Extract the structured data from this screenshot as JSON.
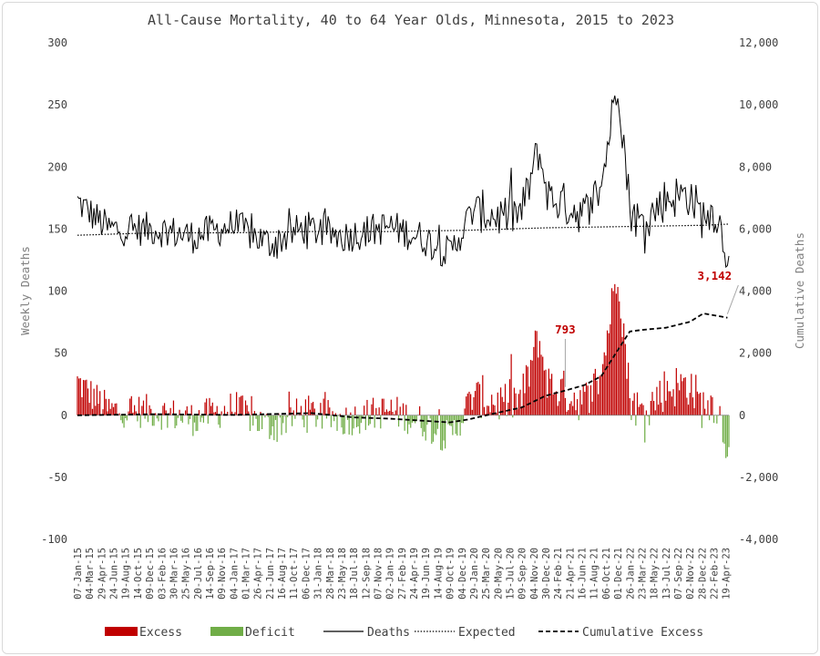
{
  "chart_data": {
    "type": "bar",
    "title": "All-Cause Mortality, 40 to 64 Year Olds, Minnesota, 2015 to 2023",
    "ylabel_left": "Weekly Deaths",
    "ylabel_right": "Cumulative Deaths",
    "ylim_left": [
      -100,
      300
    ],
    "yticks_left": [
      "-100",
      "-50",
      "0",
      "50",
      "100",
      "150",
      "200",
      "250",
      "300"
    ],
    "ylim_right": [
      -4000,
      12000
    ],
    "yticks_right": [
      "-4,000",
      "-2,000",
      "0",
      "2,000",
      "4,000",
      "6,000",
      "8,000",
      "10,000",
      "12,000"
    ],
    "x_start": "2015-01-07",
    "x_end": "2023-05-03",
    "week_count": 435,
    "xtick_labels": [
      "07-Jan-15",
      "04-Mar-15",
      "29-Apr-15",
      "24-Jun-15",
      "19-Aug-15",
      "14-Oct-15",
      "09-Dec-15",
      "03-Feb-16",
      "30-Mar-16",
      "25-May-16",
      "20-Jul-16",
      "14-Sep-16",
      "09-Nov-16",
      "04-Jan-17",
      "01-Mar-17",
      "26-Apr-17",
      "21-Jun-17",
      "16-Aug-17",
      "11-Oct-17",
      "06-Dec-17",
      "31-Jan-18",
      "28-Mar-18",
      "23-May-18",
      "18-Jul-18",
      "12-Sep-18",
      "07-Nov-18",
      "02-Jan-19",
      "27-Feb-19",
      "24-Apr-19",
      "19-Jun-19",
      "14-Aug-19",
      "09-Oct-19",
      "04-Dec-19",
      "29-Jan-20",
      "25-Mar-20",
      "20-May-20",
      "15-Jul-20",
      "09-Sep-20",
      "04-Nov-20",
      "30-Dec-20",
      "24-Feb-21",
      "21-Apr-21",
      "16-Jun-21",
      "11-Aug-21",
      "06-Oct-21",
      "01-Dec-21",
      "26-Jan-22",
      "23-Mar-22",
      "18-May-22",
      "13-Jul-22",
      "07-Sep-22",
      "02-Nov-22",
      "28-Dec-22",
      "22-Feb-23",
      "19-Apr-23"
    ],
    "series": [
      {
        "name": "Excess",
        "kind": "bar",
        "color": "#c00000"
      },
      {
        "name": "Deficit",
        "kind": "bar",
        "color": "#70ad47"
      },
      {
        "name": "Deaths",
        "kind": "line",
        "axis": "left",
        "color": "#000000"
      },
      {
        "name": "Expected",
        "kind": "line",
        "axis": "left",
        "style": "dotted",
        "color": "#000000"
      },
      {
        "name": "Cumulative Excess",
        "kind": "line",
        "axis": "right",
        "style": "dashed",
        "color": "#000000"
      }
    ],
    "expected_weekly": [
      [
        "2015-01-07",
        145
      ],
      [
        "2016-01-06",
        147
      ],
      [
        "2017-01-04",
        147
      ],
      [
        "2018-01-03",
        148
      ],
      [
        "2019-01-02",
        148
      ],
      [
        "2020-01-01",
        149
      ],
      [
        "2021-01-06",
        151
      ],
      [
        "2022-01-05",
        152
      ],
      [
        "2023-01-04",
        153
      ],
      [
        "2023-05-03",
        154
      ]
    ],
    "deaths_weekly_approx": [
      [
        "2015-01-07",
        172
      ],
      [
        "2015-06-01",
        150
      ],
      [
        "2016-01-06",
        150
      ],
      [
        "2016-07-01",
        144
      ],
      [
        "2017-01-04",
        153
      ],
      [
        "2017-06-21",
        138
      ],
      [
        "2017-12-01",
        151
      ],
      [
        "2018-06-01",
        144
      ],
      [
        "2019-01-02",
        152
      ],
      [
        "2019-06-01",
        143
      ],
      [
        "2019-10-09",
        130
      ],
      [
        "2020-01-29",
        166
      ],
      [
        "2020-05-20",
        160
      ],
      [
        "2020-09-09",
        163
      ],
      [
        "2020-11-25",
        213
      ],
      [
        "2021-01-13",
        176
      ],
      [
        "2021-04-21",
        168
      ],
      [
        "2021-07-01",
        162
      ],
      [
        "2021-09-15",
        185
      ],
      [
        "2021-12-01",
        272
      ],
      [
        "2022-01-26",
        167
      ],
      [
        "2022-03-23",
        153
      ],
      [
        "2022-07-13",
        175
      ],
      [
        "2022-11-02",
        178
      ],
      [
        "2022-12-28",
        160
      ],
      [
        "2023-03-01",
        165
      ],
      [
        "2023-05-03",
        126
      ]
    ],
    "cumulative_excess": [
      [
        "2015-01-07",
        0
      ],
      [
        "2016-01-06",
        35
      ],
      [
        "2017-01-04",
        10
      ],
      [
        "2018-01-03",
        70
      ],
      [
        "2018-07-18",
        -70
      ],
      [
        "2019-01-02",
        -110
      ],
      [
        "2019-10-09",
        -230
      ],
      [
        "2020-01-01",
        -140
      ],
      [
        "2020-04-22",
        40
      ],
      [
        "2020-09-09",
        250
      ],
      [
        "2020-12-30",
        630
      ],
      [
        "2021-03-31",
        793
      ],
      [
        "2021-07-01",
        980
      ],
      [
        "2021-09-15",
        1260
      ],
      [
        "2021-12-01",
        2100
      ],
      [
        "2022-01-26",
        2700
      ],
      [
        "2022-03-23",
        2750
      ],
      [
        "2022-07-13",
        2820
      ],
      [
        "2022-11-02",
        3010
      ],
      [
        "2023-01-04",
        3280
      ],
      [
        "2023-04-26",
        3142
      ]
    ],
    "annotations": [
      {
        "text": "793",
        "date": "2021-03-31",
        "value": 793
      },
      {
        "text": "3,142",
        "date": "2023-04-26",
        "value": 3142
      }
    ],
    "legend_position": "bottom",
    "grid": false
  }
}
